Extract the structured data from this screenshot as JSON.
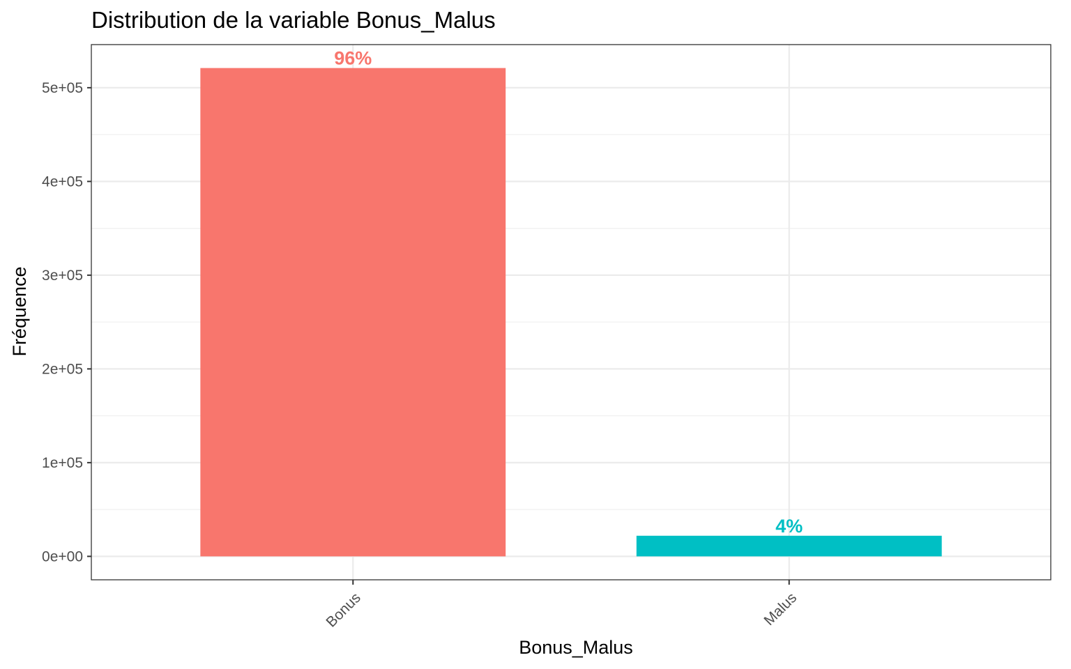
{
  "chart_data": {
    "type": "bar",
    "title": "Distribution de la variable Bonus_Malus",
    "xlabel": "Bonus_Malus",
    "ylabel": "Fréquence",
    "categories": [
      "Bonus",
      "Malus"
    ],
    "values": [
      521000,
      22000
    ],
    "labels": [
      "96%",
      "4%"
    ],
    "colors": [
      "#F8766D",
      "#00BFC4"
    ],
    "ylim": [
      -25000,
      546000
    ],
    "yticks": [
      0,
      100000,
      200000,
      300000,
      400000,
      500000
    ],
    "ytick_labels": [
      "0e+00",
      "1e+05",
      "2e+05",
      "3e+05",
      "4e+05",
      "5e+05"
    ],
    "grid": true,
    "theme": "bw"
  }
}
